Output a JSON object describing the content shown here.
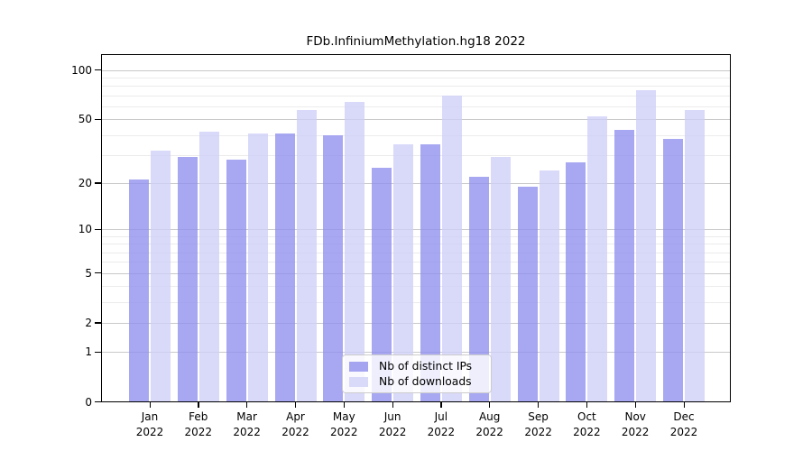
{
  "title": "FDb.InfiniumMethylation.hg18 2022",
  "chart_data": {
    "type": "bar",
    "title": "FDb.InfiniumMethylation.hg18 2022",
    "categories": [
      "Jan",
      "Feb",
      "Mar",
      "Apr",
      "May",
      "Jun",
      "Jul",
      "Aug",
      "Sep",
      "Oct",
      "Nov",
      "Dec"
    ],
    "category_year": "2022",
    "series": [
      {
        "name": "Nb of distinct IPs",
        "color": "#a4a4f1",
        "fill": "rgba(143,143,238,0.78)",
        "values": [
          21,
          29,
          28,
          41,
          40,
          25,
          35,
          22,
          19,
          27,
          43,
          38
        ]
      },
      {
        "name": "Nb of downloads",
        "color": "#d9d9fa",
        "fill": "rgba(206,206,249,0.78)",
        "values": [
          32,
          42,
          41,
          57,
          64,
          35,
          70,
          29,
          24,
          52,
          75,
          57
        ]
      }
    ],
    "xlabel": "",
    "ylabel": "",
    "yscale": "log1p",
    "ylim": [
      0,
      122
    ],
    "yticks": [
      100,
      50,
      20,
      10,
      5,
      2,
      1,
      0
    ],
    "minor_yticks": [
      90,
      80,
      70,
      60,
      40,
      30,
      9,
      8,
      7,
      6,
      4,
      3
    ],
    "grid": true,
    "legend_position": "lower-center",
    "colors": {
      "major_grid": "#c9c9c9",
      "minor_grid": "#ebebeb",
      "axis": "#000000",
      "legend_border": "#cccccc"
    }
  }
}
